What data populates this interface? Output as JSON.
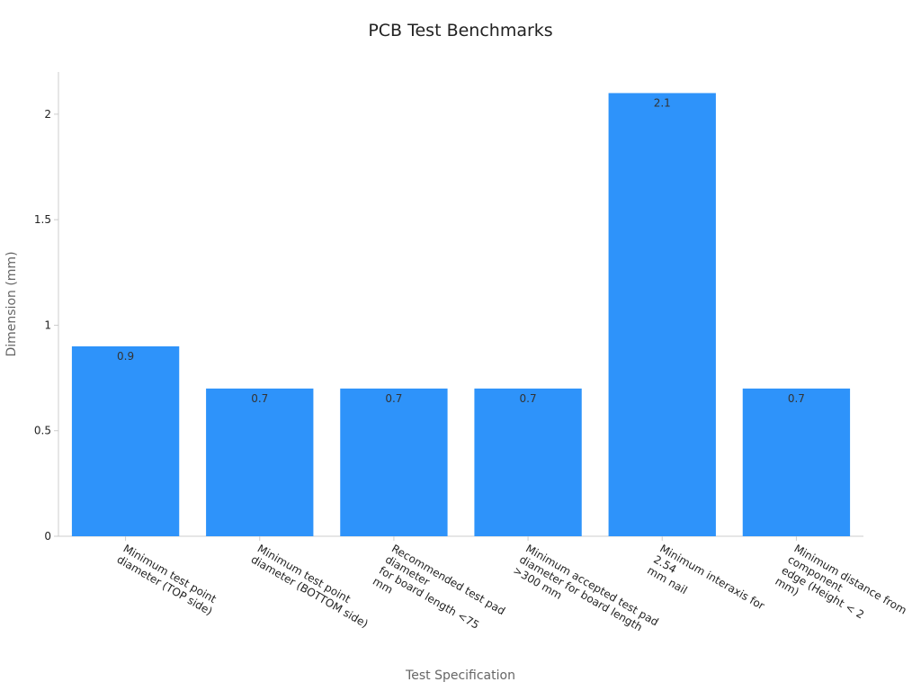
{
  "chart_data": {
    "type": "bar",
    "title": "PCB Test Benchmarks",
    "x_label": "Test Specification",
    "y_label": "Dimension (mm)",
    "categories": [
      [
        "Minimum test point",
        "diameter (TOP side)"
      ],
      [
        "Minimum test point",
        "diameter (BOTTOM side)"
      ],
      [
        "Recommended test pad",
        "diameter",
        "for board length <75",
        "mm"
      ],
      [
        "Minimum accepted test pad",
        "diameter for board length",
        ">300 mm"
      ],
      [
        "Minimum interaxis for",
        "2.54",
        "mm nail"
      ],
      [
        "Minimum distance from",
        "component",
        "edge (Height < 2",
        "mm)"
      ]
    ],
    "values": [
      0.9,
      0.7,
      0.7,
      0.7,
      2.1,
      0.7
    ],
    "color": "#2e93fa",
    "ylim": [
      0,
      2.2
    ],
    "yticks": [
      0,
      0.5,
      1,
      1.5,
      2
    ],
    "grid": false
  }
}
